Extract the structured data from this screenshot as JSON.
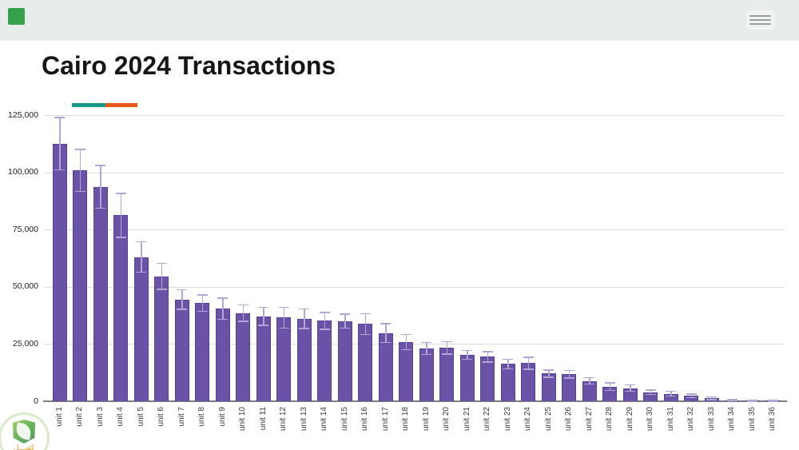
{
  "top_bar": {
    "background": "#e8eceb",
    "brand_logo_color": "#34a24b"
  },
  "header": {
    "title": "Cairo 2024 Transactions",
    "accent_teal": "#18998a",
    "accent_orange": "#e8571a"
  },
  "watermark": {
    "text": "كفيـــل"
  },
  "chart_data": {
    "type": "bar",
    "title": "Cairo 2024 Transactions",
    "xlabel": "",
    "ylabel": "",
    "ylim": [
      0,
      125000
    ],
    "grid": true,
    "legend": false,
    "x_label_rotation": -90,
    "bar_color": "#6a53a6",
    "bar_border_color": "#57429b",
    "error_bar_color": "#b2a6d6",
    "yticks": [
      {
        "value": 0,
        "label": "0"
      },
      {
        "value": 25000,
        "label": "25,000"
      },
      {
        "value": 50000,
        "label": "50,000"
      },
      {
        "value": 75000,
        "label": "75,000"
      },
      {
        "value": 100000,
        "label": "100,000"
      },
      {
        "value": 125000,
        "label": "125,000"
      }
    ],
    "categories": [
      "unit 1",
      "unit 2",
      "unit 3",
      "unit 4",
      "unit 5",
      "unit 6",
      "unit 7",
      "unit 8",
      "unit 9",
      "unit 10",
      "unit 11",
      "unit 12",
      "unit 13",
      "unit 14",
      "unit 15",
      "unit 16",
      "unit 17",
      "unit 18",
      "unit 19",
      "unit 20",
      "unit 21",
      "unit 22",
      "unit 23",
      "unit 24",
      "unit 25",
      "unit 26",
      "unit 27",
      "unit 28",
      "unit 29",
      "unit 30",
      "unit 31",
      "unit 32",
      "unit 33",
      "unit 34",
      "unit 35",
      "unit 36"
    ],
    "values": [
      112500,
      100800,
      93700,
      81200,
      63000,
      54600,
      44400,
      42800,
      40400,
      38500,
      37100,
      36500,
      36100,
      35100,
      35000,
      33700,
      29700,
      25900,
      23100,
      23300,
      20200,
      19400,
      16300,
      16600,
      12100,
      11800,
      8900,
      6400,
      5700,
      3900,
      3300,
      2400,
      1300,
      400,
      300,
      300
    ],
    "errors": [
      11400,
      9100,
      9300,
      9600,
      6600,
      5700,
      4300,
      3600,
      4600,
      3600,
      3900,
      4600,
      4300,
      3600,
      3100,
      4600,
      4100,
      3300,
      2600,
      2700,
      1900,
      2300,
      2100,
      2600,
      1600,
      1700,
      1400,
      1600,
      1400,
      1000,
      1000,
      800,
      600,
      300,
      250,
      250
    ]
  }
}
